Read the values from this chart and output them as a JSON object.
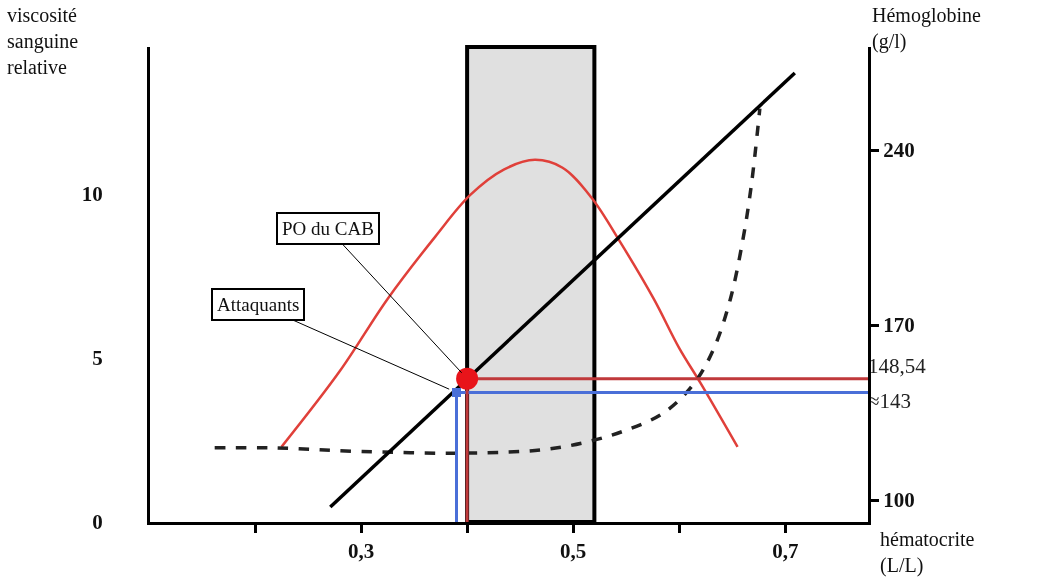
{
  "chart_data": {
    "type": "line",
    "xlabel": "hématocrite\n(L/L)",
    "ylabel": "viscosité\nsanguine\nrelative",
    "y2label": "Hémoglobine\n(g/l)",
    "xlim": [
      0.101,
      0.778
    ],
    "xticks": [
      {
        "value": 0.2,
        "label": null
      },
      {
        "value": 0.3,
        "label": "0,3"
      },
      {
        "value": 0.4,
        "label": null
      },
      {
        "value": 0.5,
        "label": "0,5"
      },
      {
        "value": 0.6,
        "label": null
      },
      {
        "value": 0.7,
        "label": "0,7"
      }
    ],
    "ylim": [
      0,
      14.48
    ],
    "yticks": [
      0,
      5,
      10
    ],
    "y2lim": [
      91.2,
      281.2
    ],
    "y2ticks": [
      100,
      170,
      240
    ],
    "bands": [
      {
        "axis": "x",
        "from": 0.4,
        "to": 0.52,
        "color": "#e0e0e0"
      }
    ],
    "series": [
      {
        "type": "line",
        "color": "#e0403a",
        "x": [
          0.225,
          0.28,
          0.325,
          0.37,
          0.403,
          0.435,
          0.464,
          0.49,
          0.517,
          0.545,
          0.576,
          0.6,
          0.62,
          0.655
        ],
        "values": [
          2.29,
          4.6,
          6.8,
          8.7,
          9.97,
          10.75,
          11.04,
          10.8,
          9.9,
          8.5,
          6.8,
          5.3,
          4.24,
          2.29
        ]
      },
      {
        "type": "line",
        "color": "#222222",
        "line_style": "dashed",
        "x": [
          0.162,
          0.22,
          0.3,
          0.4,
          0.47,
          0.513,
          0.55,
          0.585,
          0.613,
          0.632,
          0.648,
          0.66,
          0.668,
          0.676
        ],
        "values": [
          2.26,
          2.26,
          2.15,
          2.1,
          2.2,
          2.44,
          2.8,
          3.32,
          4.18,
          5.24,
          6.77,
          8.6,
          10.27,
          12.6
        ]
      },
      {
        "type": "line",
        "color": "#000000",
        "axis": "y2",
        "x": [
          0.271,
          0.709
        ],
        "values": [
          97.2,
          270.8
        ]
      },
      {
        "type": "line",
        "color": "#4a6fd8",
        "axis": "y2",
        "x": [
          0.39,
          0.39,
          0.778
        ],
        "values": [
          91.2,
          143,
          143
        ],
        "value_labels": [
          null,
          null,
          "≈143"
        ]
      },
      {
        "type": "line",
        "color": "#c0393b",
        "axis": "y2",
        "x": [
          0.4,
          0.4,
          0.778
        ],
        "values": [
          91.2,
          148.54,
          148.54
        ],
        "value_labels": [
          null,
          null,
          "148,54"
        ]
      },
      {
        "type": "scatter",
        "color": "#4a6fd8",
        "axis": "y2",
        "marker": "square",
        "x": [
          0.39
        ],
        "values": [
          143
        ]
      },
      {
        "type": "scatter",
        "color": "#e8141a",
        "axis": "y2",
        "marker": "circle",
        "x": [
          0.4
        ],
        "values": [
          148.54
        ]
      }
    ],
    "annotations": [
      {
        "text": "PO du CAB",
        "x": 0.4,
        "y": 4.37
      },
      {
        "text": "Attaquants",
        "x": 0.39,
        "y": 3.95
      }
    ]
  }
}
